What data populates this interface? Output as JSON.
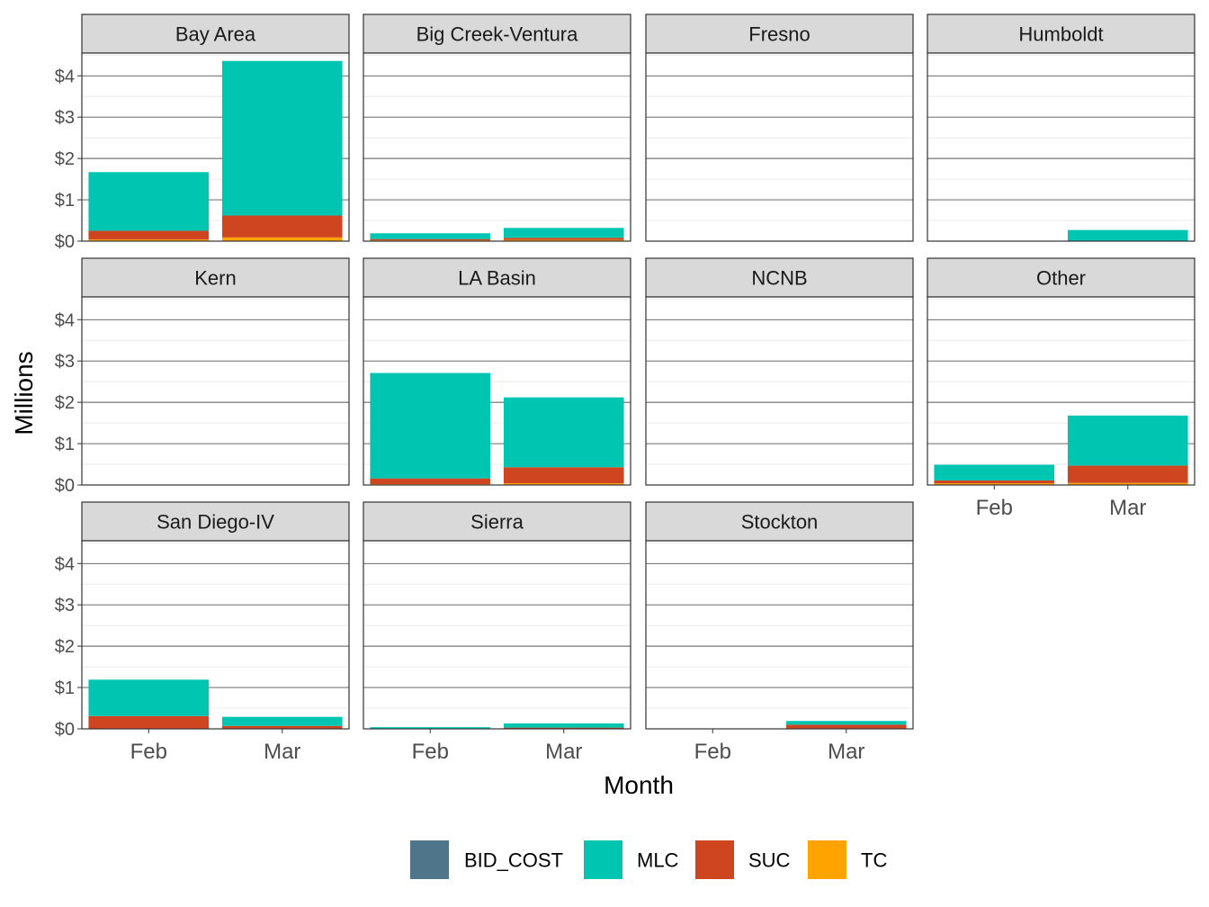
{
  "chart_data": {
    "type": "bar",
    "stacked": true,
    "facet_layout": "4 columns, 3 rows, free x-axis labels on bottom row of each column",
    "xlabel": "Month",
    "ylabel": "Millions",
    "categories": [
      "Feb",
      "Mar"
    ],
    "ylim": [
      0,
      4.55
    ],
    "yticks": [
      0,
      1,
      2,
      3,
      4
    ],
    "ytick_labels": [
      "$0",
      "$1",
      "$2",
      "$3",
      "$4"
    ],
    "grid": true,
    "legend_position": "bottom",
    "legend_order": [
      "BID_COST",
      "MLC",
      "SUC",
      "TC"
    ],
    "stack_order": [
      "TC",
      "SUC",
      "MLC",
      "BID_COST"
    ],
    "colors": {
      "BID_COST": "#4e7589",
      "MLC": "#00c5b1",
      "SUC": "#cf4520",
      "TC": "#ffa300"
    },
    "facets": [
      {
        "name": "Bay Area",
        "values": {
          "Feb": {
            "TC": 0.04,
            "SUC": 0.21,
            "MLC": 1.42,
            "BID_COST": 0
          },
          "Mar": {
            "TC": 0.09,
            "SUC": 0.53,
            "MLC": 3.74,
            "BID_COST": 0
          }
        }
      },
      {
        "name": "Big Creek-Ventura",
        "values": {
          "Feb": {
            "TC": 0.02,
            "SUC": 0.03,
            "MLC": 0.14,
            "BID_COST": 0
          },
          "Mar": {
            "TC": 0.03,
            "SUC": 0.05,
            "MLC": 0.24,
            "BID_COST": 0
          }
        }
      },
      {
        "name": "Fresno",
        "values": {
          "Feb": {
            "TC": 0,
            "SUC": 0.01,
            "MLC": 0,
            "BID_COST": 0
          },
          "Mar": {
            "TC": 0,
            "SUC": 0,
            "MLC": 0,
            "BID_COST": 0
          }
        }
      },
      {
        "name": "Humboldt",
        "values": {
          "Feb": {
            "TC": 0,
            "SUC": 0,
            "MLC": 0,
            "BID_COST": 0
          },
          "Mar": {
            "TC": 0,
            "SUC": 0,
            "MLC": 0.27,
            "BID_COST": 0
          }
        }
      },
      {
        "name": "Kern",
        "values": {
          "Feb": {
            "TC": 0,
            "SUC": 0,
            "MLC": 0,
            "BID_COST": 0
          },
          "Mar": {
            "TC": 0,
            "SUC": 0,
            "MLC": 0,
            "BID_COST": 0
          }
        }
      },
      {
        "name": "LA Basin",
        "values": {
          "Feb": {
            "TC": 0.02,
            "SUC": 0.14,
            "MLC": 2.55,
            "BID_COST": 0
          },
          "Mar": {
            "TC": 0.04,
            "SUC": 0.39,
            "MLC": 1.69,
            "BID_COST": 0
          }
        }
      },
      {
        "name": "NCNB",
        "values": {
          "Feb": {
            "TC": 0,
            "SUC": 0,
            "MLC": 0,
            "BID_COST": 0
          },
          "Mar": {
            "TC": 0,
            "SUC": 0,
            "MLC": 0,
            "BID_COST": 0
          }
        }
      },
      {
        "name": "Other",
        "values": {
          "Feb": {
            "TC": 0.04,
            "SUC": 0.07,
            "MLC": 0.38,
            "BID_COST": 0
          },
          "Mar": {
            "TC": 0.05,
            "SUC": 0.42,
            "MLC": 1.21,
            "BID_COST": 0
          }
        }
      },
      {
        "name": "San Diego-IV",
        "values": {
          "Feb": {
            "TC": 0,
            "SUC": 0.31,
            "MLC": 0.88,
            "BID_COST": 0
          },
          "Mar": {
            "TC": 0,
            "SUC": 0.07,
            "MLC": 0.22,
            "BID_COST": 0
          }
        }
      },
      {
        "name": "Sierra",
        "values": {
          "Feb": {
            "TC": 0,
            "SUC": 0.01,
            "MLC": 0.03,
            "BID_COST": 0
          },
          "Mar": {
            "TC": 0,
            "SUC": 0.03,
            "MLC": 0.1,
            "BID_COST": 0
          }
        }
      },
      {
        "name": "Stockton",
        "values": {
          "Feb": {
            "TC": 0,
            "SUC": 0.01,
            "MLC": 0,
            "BID_COST": 0
          },
          "Mar": {
            "TC": 0,
            "SUC": 0.1,
            "MLC": 0.09,
            "BID_COST": 0
          }
        }
      }
    ]
  }
}
